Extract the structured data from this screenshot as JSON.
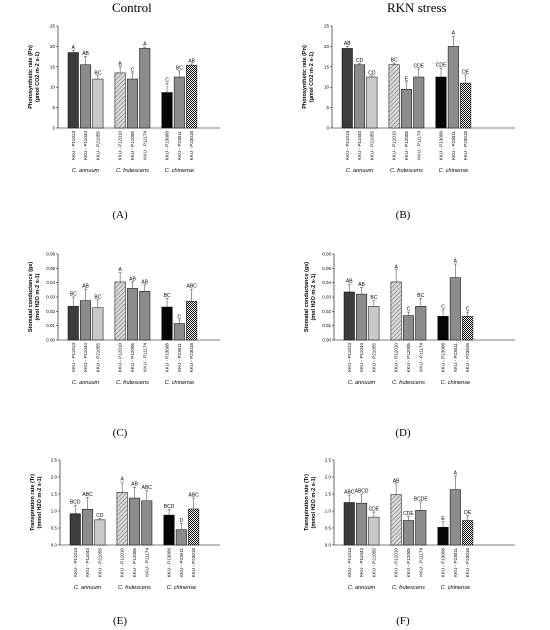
{
  "titles": {
    "left": "Control",
    "right": "RKN stress"
  },
  "chart_data": [
    {
      "type": "bar",
      "panel_label": "(A)",
      "ylabel": "Photosynthetic rate (Pn)",
      "yunit": "(µmol CO2 m-2 s-1)",
      "ylim": [
        0,
        25
      ],
      "yticks": [
        "0",
        "5",
        "10",
        "15",
        "20",
        "25"
      ],
      "categories": [
        "KKU - P11013",
        "KKU - P11044",
        "KKU - P21055",
        "KKU - P12010",
        "KKU - P12005",
        "KKU - P11174",
        "KKU - P13008",
        "KKU - P23011",
        "KKU - P23018"
      ],
      "groups": [
        "C. annuum",
        "C. frutescens",
        "C. chinense"
      ],
      "values": [
        18.5,
        15.5,
        12,
        13.5,
        12,
        19.5,
        8.7,
        12.5,
        15.4
      ],
      "errors": [
        0.5,
        2.0,
        0.8,
        1.5,
        1.5,
        0.3,
        2.3,
        1.5,
        0.3
      ],
      "letters": [
        "A",
        "AB",
        "BC",
        "B",
        "C",
        "A",
        "C",
        "BC",
        "AB"
      ]
    },
    {
      "type": "bar",
      "panel_label": "(B)",
      "ylabel": "Photosynthetic rate (Pn)",
      "yunit": "(µmol CO2 m-2 s-1)",
      "ylim": [
        0,
        25
      ],
      "yticks": [
        "0",
        "5",
        "10",
        "15",
        "20",
        "25"
      ],
      "categories": [
        "KKU - P11013",
        "KKU - P11044",
        "KKU - P21055",
        "KKU - P12010",
        "KKU - P12005",
        "KKU - P11174",
        "KKU - P13008",
        "KKU - P23011",
        "KKU - P23018"
      ],
      "groups": [
        "C. annuum",
        "C. frutescens",
        "C. chinense"
      ],
      "values": [
        19.5,
        15.5,
        12.5,
        15.5,
        9.5,
        12.5,
        12.5,
        20,
        11
      ],
      "errors": [
        0.5,
        0.3,
        0.3,
        0.4,
        1.8,
        2.0,
        2.2,
        2.5,
        2.0
      ],
      "letters": [
        "AB",
        "CD",
        "CD",
        "BC",
        "E",
        "CDE",
        "CDE",
        "A",
        "DE"
      ]
    },
    {
      "type": "bar",
      "panel_label": "(C)",
      "ylabel": "Stomatal conductance (gs)",
      "yunit": "(mol H2O m-2 s-1)",
      "ylim": [
        0,
        0.06
      ],
      "yticks": [
        "0.00",
        "0.01",
        "0.02",
        "0.03",
        "0.04",
        "0.05",
        "0.06"
      ],
      "categories": [
        "KKU - P11013",
        "KKU - P11044",
        "KKU - P21055",
        "KKU - P12010",
        "KKU - P12005",
        "KKU - P11174",
        "KKU - P13008",
        "KKU - P23011",
        "KKU - P23018"
      ],
      "groups": [
        "C. annuum",
        "C. frutescens",
        "C. chinense"
      ],
      "values": [
        0.0235,
        0.0275,
        0.0225,
        0.0405,
        0.036,
        0.034,
        0.023,
        0.0115,
        0.027
      ],
      "errors": [
        0.0065,
        0.008,
        0.0055,
        0.0065,
        0.0045,
        0.0045,
        0.006,
        0.0025,
        0.0085
      ],
      "letters": [
        "BC",
        "AB",
        "BC",
        "A",
        "AB",
        "AB",
        "BC",
        "C",
        "ABC"
      ]
    },
    {
      "type": "bar",
      "panel_label": "(D)",
      "ylabel": "Stomatal conductance (gs)",
      "yunit": "(mol H2O m-2 s-1)",
      "ylim": [
        0,
        0.06
      ],
      "yticks": [
        "0.00",
        "0.01",
        "0.02",
        "0.03",
        "0.04",
        "0.05",
        "0.06"
      ],
      "categories": [
        "KKU - P11013",
        "KKU - P11044",
        "KKU - P21055",
        "KKU - P12010",
        "KKU - P12005",
        "KKU - P11174",
        "KKU - P13008",
        "KKU - P23011",
        "KKU - P23018"
      ],
      "groups": [
        "C. annuum",
        "C. frutescens",
        "C. chinense"
      ],
      "values": [
        0.0335,
        0.032,
        0.0235,
        0.0405,
        0.017,
        0.0235,
        0.0165,
        0.0435,
        0.0165
      ],
      "errors": [
        0.0055,
        0.0045,
        0.004,
        0.0085,
        0.0025,
        0.0055,
        0.0045,
        0.0095,
        0.003
      ],
      "letters": [
        "AB",
        "AB",
        "BC",
        "A",
        "C",
        "BC",
        "C",
        "A",
        "C"
      ]
    },
    {
      "type": "bar",
      "panel_label": "(E)",
      "ylabel": "Transpiration rate (Tr)",
      "yunit": "(mmol H2O m-2 s-1)",
      "ylim": [
        0,
        2.5
      ],
      "yticks": [
        "0.0",
        "0.5",
        "1.0",
        "1.5",
        "2.0",
        "2.5"
      ],
      "categories": [
        "KKU - P11013",
        "KKU - P11044",
        "KKU - P21055",
        "KKU - P12010",
        "KKU - P12005",
        "KKU - P11174",
        "KKU - P13008",
        "KKU - P23011",
        "KKU - P23018"
      ],
      "groups": [
        "C. annuum",
        "C. frutescens",
        "C. chinense"
      ],
      "values": [
        0.92,
        1.05,
        0.74,
        1.55,
        1.38,
        1.3,
        0.88,
        0.45,
        1.06
      ],
      "errors": [
        0.25,
        0.35,
        0.04,
        0.3,
        0.32,
        0.3,
        0.17,
        0.18,
        0.32
      ],
      "letters": [
        "BCD",
        "ABC",
        "CD",
        "A",
        "AB",
        "ABC",
        "BCD",
        "D",
        "ABC"
      ]
    },
    {
      "type": "bar",
      "panel_label": "(F)",
      "ylabel": "Transpiration rate (Tr)",
      "yunit": "(mmol H2O m-2 s-1)",
      "ylim": [
        0,
        2.5
      ],
      "yticks": [
        "0.0",
        "0.5",
        "1.0",
        "1.5",
        "2.0",
        "2.5"
      ],
      "categories": [
        "KKU - P11013",
        "KKU - P11044",
        "KKU - P21055",
        "KKU - P12010",
        "KKU - P12005",
        "KKU - P11174",
        "KKU - P13008",
        "KKU - P23011",
        "KKU - P23018"
      ],
      "groups": [
        "C. annuum",
        "C. frutescens",
        "C. chinense"
      ],
      "values": [
        1.25,
        1.23,
        0.82,
        1.48,
        0.72,
        1.02,
        0.52,
        1.63,
        0.72
      ],
      "errors": [
        0.22,
        0.27,
        0.15,
        0.32,
        0.12,
        0.25,
        0.17,
        0.4,
        0.15
      ],
      "letters": [
        "ABC",
        "ABCD",
        "CDE",
        "AB",
        "CDE",
        "BCDE",
        "E",
        "A",
        "DE"
      ]
    }
  ]
}
